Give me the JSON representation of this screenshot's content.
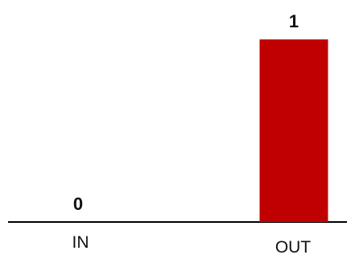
{
  "colors": {
    "bar": "#C00000",
    "axis": "#000000",
    "background": "#FFFFFF"
  },
  "chart_data": {
    "type": "bar",
    "categories": [
      "IN",
      "OUT"
    ],
    "values": [
      0,
      1
    ],
    "data_labels": [
      "0",
      "1"
    ],
    "ylim": [
      0,
      1
    ],
    "grid": false,
    "legend": "none"
  }
}
